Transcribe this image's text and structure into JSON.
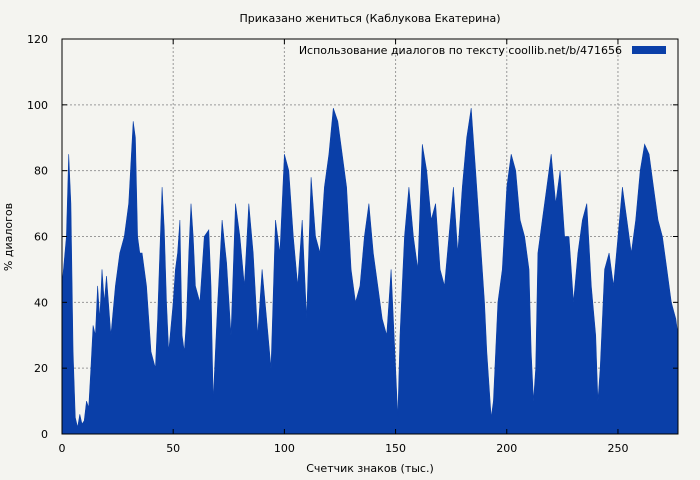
{
  "chart_data": {
    "type": "area",
    "title": "Приказано жениться (Каблукова Екатерина)",
    "xlabel": "Счетчик знаков (тыс.)",
    "ylabel": "% диалогов",
    "xlim": [
      0,
      277
    ],
    "ylim": [
      0,
      120
    ],
    "xticks": [
      "0",
      "50",
      "100",
      "150",
      "200",
      "250"
    ],
    "yticks": [
      "0",
      "20",
      "40",
      "60",
      "80",
      "100",
      "120"
    ],
    "grid": true,
    "legend_position": "top-right",
    "series": [
      {
        "name": "Использование диалогов по тексту  coollib.net/b/471656",
        "color": "#0a3fa8",
        "x": [
          0,
          2,
          3,
          4,
          5,
          6,
          7,
          8,
          9,
          10,
          11,
          12,
          13,
          14,
          15,
          16,
          17,
          18,
          19,
          20,
          22,
          24,
          26,
          28,
          30,
          32,
          33,
          34,
          35,
          36,
          38,
          40,
          42,
          43,
          44,
          45,
          46,
          47,
          48,
          50,
          51,
          52,
          53,
          54,
          55,
          56,
          57,
          58,
          59,
          60,
          62,
          64,
          66,
          67,
          68,
          69,
          70,
          72,
          74,
          76,
          78,
          80,
          82,
          84,
          86,
          88,
          90,
          92,
          94,
          96,
          98,
          100,
          102,
          104,
          106,
          108,
          110,
          112,
          114,
          116,
          118,
          120,
          122,
          124,
          126,
          128,
          130,
          132,
          134,
          136,
          138,
          140,
          142,
          144,
          146,
          148,
          150,
          151,
          152,
          153,
          154,
          156,
          158,
          160,
          162,
          164,
          166,
          168,
          170,
          172,
          174,
          176,
          178,
          180,
          182,
          184,
          186,
          188,
          190,
          191,
          192,
          193,
          194,
          196,
          198,
          200,
          202,
          204,
          206,
          208,
          210,
          211,
          212,
          213,
          214,
          216,
          218,
          220,
          222,
          224,
          226,
          228,
          230,
          232,
          234,
          236,
          238,
          240,
          241,
          242,
          243,
          244,
          246,
          248,
          250,
          252,
          254,
          256,
          258,
          260,
          262,
          264,
          266,
          268,
          270,
          272,
          274,
          276,
          277
        ],
        "y": [
          45,
          60,
          85,
          70,
          25,
          5,
          2,
          6,
          3,
          4,
          10,
          8,
          20,
          33,
          30,
          45,
          35,
          50,
          40,
          48,
          30,
          45,
          55,
          60,
          70,
          95,
          90,
          60,
          55,
          55,
          45,
          25,
          20,
          35,
          55,
          75,
          62,
          40,
          25,
          40,
          50,
          55,
          65,
          30,
          25,
          35,
          55,
          70,
          60,
          45,
          40,
          60,
          62,
          45,
          10,
          25,
          40,
          65,
          52,
          30,
          70,
          60,
          45,
          70,
          55,
          30,
          50,
          35,
          20,
          65,
          55,
          85,
          80,
          60,
          45,
          65,
          35,
          78,
          60,
          55,
          75,
          85,
          99,
          95,
          85,
          75,
          50,
          40,
          45,
          60,
          70,
          55,
          45,
          35,
          30,
          50,
          20,
          5,
          30,
          45,
          60,
          75,
          60,
          50,
          88,
          80,
          65,
          70,
          50,
          45,
          60,
          75,
          55,
          75,
          90,
          99,
          80,
          60,
          40,
          25,
          15,
          5,
          10,
          40,
          50,
          75,
          85,
          80,
          65,
          60,
          50,
          25,
          10,
          20,
          55,
          65,
          75,
          85,
          70,
          80,
          60,
          60,
          40,
          55,
          65,
          70,
          45,
          30,
          10,
          20,
          35,
          50,
          55,
          45,
          60,
          75,
          65,
          55,
          65,
          80,
          88,
          85,
          75,
          65,
          60,
          50,
          40,
          35,
          30
        ]
      }
    ]
  }
}
